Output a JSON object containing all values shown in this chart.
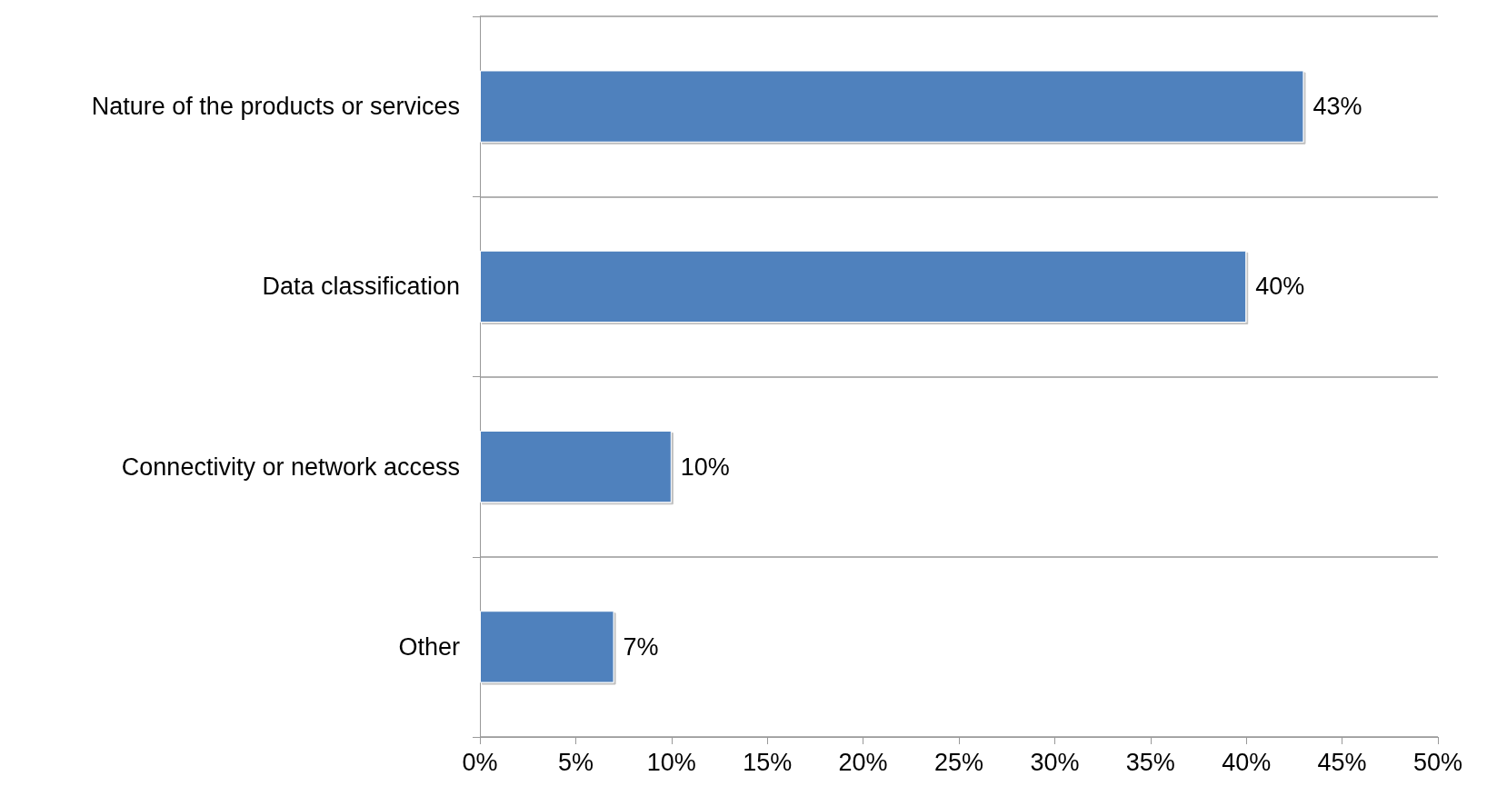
{
  "chart_data": {
    "type": "bar",
    "orientation": "horizontal",
    "categories": [
      "Nature of the products or services",
      "Data classification",
      "Connectivity or network access",
      "Other"
    ],
    "values": [
      43,
      40,
      10,
      7
    ],
    "value_labels": [
      "43%",
      "40%",
      "10%",
      "7%"
    ],
    "color": "#4f81bd",
    "xlim": [
      0,
      50
    ],
    "xticks": [
      {
        "value": 0,
        "label": "0%"
      },
      {
        "value": 5,
        "label": "5%"
      },
      {
        "value": 10,
        "label": "10%"
      },
      {
        "value": 15,
        "label": "15%"
      },
      {
        "value": 20,
        "label": "20%"
      },
      {
        "value": 25,
        "label": "25%"
      },
      {
        "value": 30,
        "label": "30%"
      },
      {
        "value": 35,
        "label": "35%"
      },
      {
        "value": 40,
        "label": "40%"
      },
      {
        "value": 45,
        "label": "45%"
      },
      {
        "value": 50,
        "label": "50%"
      }
    ],
    "grid": "y"
  }
}
